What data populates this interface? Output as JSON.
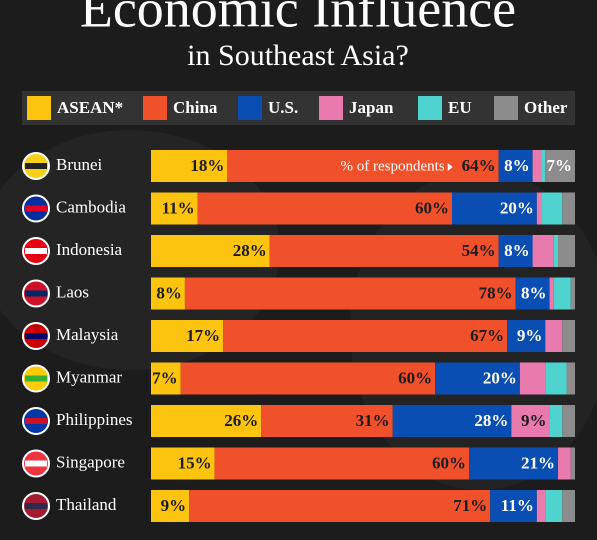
{
  "chart_data": {
    "type": "stacked-bar",
    "title": "Economic Influence",
    "subtitle": "in Southeast Asia?",
    "annotation": "% of respondents",
    "categories": [
      "Brunei",
      "Cambodia",
      "Indonesia",
      "Laos",
      "Malaysia",
      "Myanmar",
      "Philippines",
      "Singapore",
      "Thailand"
    ],
    "xlim": [
      0,
      100
    ],
    "series": [
      {
        "name": "ASEAN*",
        "color": "#fcc30f",
        "values": [
          18,
          11,
          28,
          8,
          17,
          7,
          26,
          15,
          9
        ],
        "value_labels": [
          "18%",
          "11%",
          "28%",
          "8%",
          "17%",
          "7%",
          "26%",
          "15%",
          "9%"
        ]
      },
      {
        "name": "China",
        "color": "#f0502a",
        "values": [
          64,
          60,
          54,
          78,
          67,
          60,
          31,
          60,
          71
        ],
        "value_labels": [
          "64%",
          "60%",
          "54%",
          "78%",
          "67%",
          "60%",
          "31%",
          "60%",
          "71%"
        ]
      },
      {
        "name": "U.S.",
        "color": "#0a4db3",
        "values": [
          8,
          20,
          8,
          8,
          9,
          20,
          28,
          21,
          11
        ],
        "value_labels": [
          "8%",
          "20%",
          "8%",
          "8%",
          "9%",
          "20%",
          "28%",
          "21%",
          "11%"
        ]
      },
      {
        "name": "Japan",
        "color": "#e87aae",
        "values": [
          2,
          1,
          5,
          1,
          4,
          6,
          9,
          3,
          2
        ],
        "value_labels": [
          null,
          null,
          null,
          null,
          null,
          null,
          "9%",
          null,
          null
        ]
      },
      {
        "name": "EU",
        "color": "#4fd3cf",
        "values": [
          1,
          5,
          1,
          4,
          0,
          5,
          3,
          0,
          4
        ],
        "value_labels": [
          null,
          null,
          null,
          null,
          null,
          null,
          null,
          null,
          null
        ]
      },
      {
        "name": "Other",
        "color": "#8c8c8c",
        "values": [
          7,
          3,
          4,
          1,
          3,
          2,
          3,
          1,
          3
        ],
        "value_labels": [
          "7%",
          null,
          null,
          null,
          null,
          null,
          null,
          null,
          null
        ]
      }
    ]
  }
}
